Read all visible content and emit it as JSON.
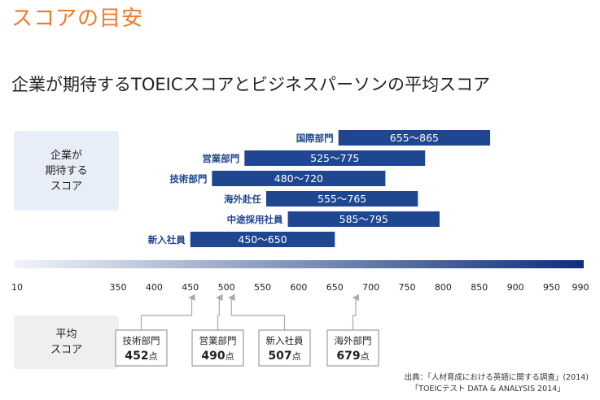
{
  "page": {
    "heading": "スコアの目安",
    "subtitle": "企業が期待するTOEICスコアとビジネスパーソンの平均スコア",
    "expected_label": "企業が\n期待する\nスコア",
    "average_label": "平均\nスコア",
    "source_line1": "出典：「人材育成における英語に関する調査」(2014)",
    "source_line2": "「TOEICテスト DATA & ANALYSIS 2014」"
  },
  "colors": {
    "bar": "#1f4690",
    "heading": "#f07a2a",
    "gradient_start": "#f2f4fa",
    "gradient_end": "#0d2f78"
  },
  "chart_data": {
    "type": "bar",
    "orientation": "horizontal-range",
    "xlim": [
      10,
      990
    ],
    "axis_break_after": 10,
    "ticks": [
      10,
      350,
      400,
      450,
      500,
      550,
      600,
      650,
      700,
      750,
      800,
      850,
      900,
      950,
      990
    ],
    "ranges": [
      {
        "category": "国際部門",
        "low": 655,
        "high": 865,
        "label": "655～865"
      },
      {
        "category": "営業部門",
        "low": 525,
        "high": 775,
        "label": "525～775"
      },
      {
        "category": "技術部門",
        "low": 480,
        "high": 720,
        "label": "480～720"
      },
      {
        "category": "海外赴任",
        "low": 555,
        "high": 765,
        "label": "555～765"
      },
      {
        "category": "中途採用社員",
        "low": 585,
        "high": 795,
        "label": "585～795"
      },
      {
        "category": "新入社員",
        "low": 450,
        "high": 650,
        "label": "450～650"
      }
    ],
    "averages": [
      {
        "category": "技術部門",
        "value": 452,
        "value_label": "452",
        "unit": "点"
      },
      {
        "category": "営業部門",
        "value": 490,
        "value_label": "490",
        "unit": "点"
      },
      {
        "category": "新入社員",
        "value": 507,
        "value_label": "507",
        "unit": "点"
      },
      {
        "category": "海外部門",
        "value": 679,
        "value_label": "679",
        "unit": "点"
      }
    ]
  }
}
